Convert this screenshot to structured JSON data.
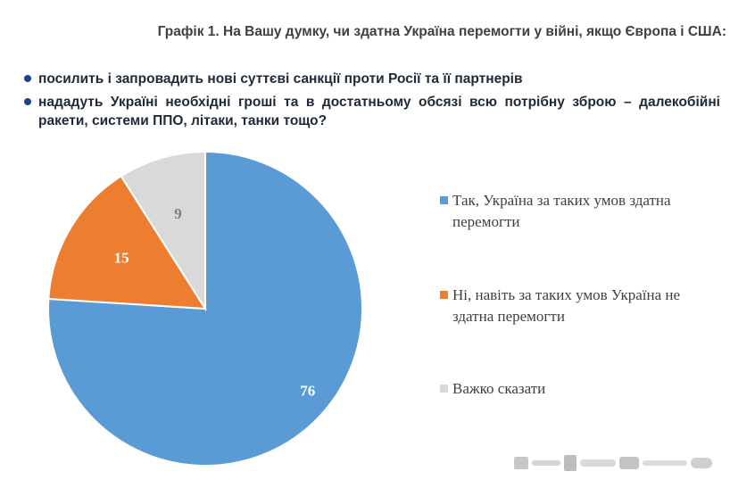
{
  "header": {
    "title": "Графік 1. На Вашу думку, чи здатна Україна перемогти у війні, якщо Європа і США:"
  },
  "conditions": [
    "посилить і запровадить нові суттєві санкції проти Росії та її партнерів",
    "нададуть Україні необхідні гроші та в достатньому обсязі всю потрібну зброю – далекобійні ракети, системи ППО, літаки, танки тощо?"
  ],
  "colors": {
    "bullet": "#1f3f8f",
    "yes": "#5b9bd5",
    "no": "#ed7d31",
    "unsure": "#d9d9d9"
  },
  "chart_data": {
    "type": "pie",
    "categories": [
      "Так, Україна за таких умов здатна перемогти",
      "Ні, навіть за таких умов Україна не здатна перемогти",
      "Важко сказати"
    ],
    "values": [
      76,
      15,
      9
    ],
    "data_labels": [
      "76",
      "15",
      "9"
    ],
    "legend_position": "right"
  }
}
